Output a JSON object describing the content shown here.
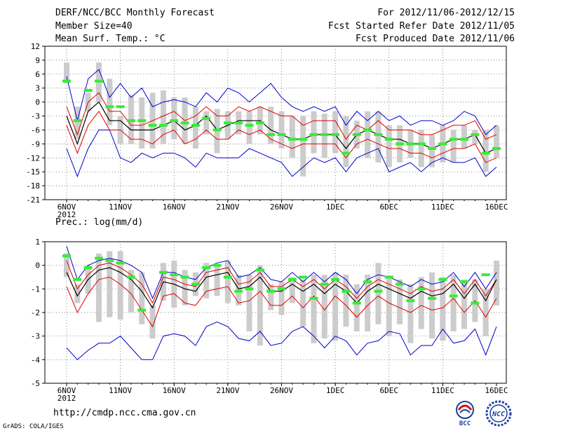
{
  "header": {
    "title": "DERF/NCC/BCC Monthly Forecast",
    "member_size": "Member Size=40",
    "variable": "Mean Surf. Temp.: °C",
    "forecast_period": "For 2012/11/06-2012/12/15",
    "started_date": "Fcst Started Refer Date 2012/11/05",
    "produced_date": "Fcst Produced Date 2012/11/06"
  },
  "footer": {
    "url": "http://cmdp.ncc.cma.gov.cn",
    "grads": "GrADS: COLA/IGES",
    "logo_bcc": "BCC",
    "logo_ncc": "NCC"
  },
  "colors": {
    "envelope": "#0000cc",
    "spread": "#dd0000",
    "mean": "#000000",
    "box": "#cccccc",
    "observed": "#33ee33"
  },
  "chart_data": [
    {
      "type": "line",
      "title": "Mean Surf. Temp.: °C",
      "ylim": [
        -21,
        12
      ],
      "yticks": [
        12,
        9,
        6,
        3,
        0,
        -3,
        -6,
        -9,
        -12,
        -15,
        -18,
        -21
      ],
      "xlim": [
        0,
        40
      ],
      "xticks": [
        {
          "x": 0,
          "label": "6NOV"
        },
        {
          "x": 5,
          "label": "11NOV"
        },
        {
          "x": 10,
          "label": "16NOV"
        },
        {
          "x": 15,
          "label": "21NOV"
        },
        {
          "x": 20,
          "label": "26NOV"
        },
        {
          "x": 25,
          "label": "1DEC"
        },
        {
          "x": 30,
          "label": "6DEC"
        },
        {
          "x": 35,
          "label": "11DEC"
        },
        {
          "x": 40,
          "label": "16DEC"
        }
      ],
      "year_label": "2012",
      "series": [
        {
          "name": "max",
          "color": "#0000cc",
          "values": [
            5.5,
            -4,
            5,
            7,
            1,
            4,
            1,
            3,
            -1,
            0,
            0.5,
            0,
            -1,
            2,
            0,
            3,
            2,
            0,
            2,
            4,
            1,
            -1,
            -2,
            -1,
            -2,
            -1,
            -5,
            -2,
            -4,
            -2,
            -4,
            -3,
            -5,
            -4,
            -4,
            -5,
            -4,
            -2,
            -3,
            -7,
            -5
          ]
        },
        {
          "name": "upper",
          "color": "#dd0000",
          "values": [
            -1,
            -7,
            0,
            2,
            -2,
            -2,
            -5,
            -5,
            -4,
            -3,
            -2,
            -4,
            -3,
            -1,
            -3,
            -3,
            -1,
            -2,
            -1,
            -2,
            -3,
            -3,
            -5,
            -4,
            -4,
            -4,
            -8,
            -5,
            -6,
            -4,
            -6,
            -6,
            -6,
            -7,
            -7,
            -6,
            -5,
            -5,
            -4,
            -8,
            -7
          ]
        },
        {
          "name": "mean",
          "color": "#000000",
          "values": [
            -3,
            -9,
            -2,
            0,
            -4,
            -4,
            -6,
            -6,
            -6,
            -5,
            -4,
            -6,
            -5,
            -3,
            -6,
            -5,
            -4,
            -4,
            -4,
            -6,
            -7,
            -8,
            -8,
            -7,
            -7,
            -7,
            -10,
            -7,
            -6,
            -7,
            -8,
            -8,
            -9,
            -9,
            -10,
            -9,
            -8,
            -8,
            -7,
            -11,
            -10
          ]
        },
        {
          "name": "lower",
          "color": "#dd0000",
          "values": [
            -5,
            -11,
            -5,
            -2,
            -6,
            -6,
            -8,
            -8,
            -9,
            -7,
            -6,
            -9,
            -8,
            -6,
            -8,
            -8,
            -6,
            -7,
            -6,
            -8,
            -9,
            -10,
            -9,
            -9,
            -9,
            -9,
            -12,
            -9,
            -8,
            -9,
            -10,
            -10,
            -11,
            -11,
            -12,
            -11,
            -10,
            -10,
            -9,
            -13,
            -12
          ]
        },
        {
          "name": "min",
          "color": "#0000cc",
          "values": [
            -10,
            -16,
            -10,
            -6,
            -6,
            -12,
            -13,
            -11,
            -12,
            -11,
            -11,
            -12,
            -14,
            -11,
            -12,
            -12,
            -12,
            -10,
            -11,
            -12,
            -13,
            -16,
            -14,
            -12,
            -13,
            -12,
            -15,
            -12,
            -11,
            -10,
            -15,
            -14,
            -13,
            -15,
            -13,
            -12,
            -13,
            -13,
            -12,
            -16,
            -14
          ]
        },
        {
          "name": "box_top",
          "color": "#cccccc",
          "values": [
            8.5,
            -1,
            2,
            8.5,
            5,
            -3,
            1.5,
            1,
            2,
            2.5,
            1,
            1,
            -1,
            -2,
            -1.5,
            -2,
            -2,
            -2,
            -1,
            -1,
            -2,
            -3,
            -3,
            -2,
            -2.5,
            -2,
            -3,
            -4,
            -2,
            -2,
            -5,
            -5,
            -6,
            -6,
            -7,
            -5,
            -6,
            -5,
            -6,
            -6,
            -5
          ]
        },
        {
          "name": "box_bottom",
          "color": "#cccccc",
          "values": [
            4,
            -8,
            -2,
            0,
            -5,
            -9,
            -9,
            -10,
            -10,
            -9,
            -8,
            -9,
            -10,
            -7,
            -11,
            -8,
            -7,
            -9,
            -7,
            -9,
            -10,
            -12,
            -16,
            -11,
            -12,
            -11,
            -14,
            -10,
            -12,
            -13,
            -14,
            -13,
            -12,
            -14,
            -14,
            -13,
            -13,
            -10,
            -9,
            -15,
            -12
          ]
        },
        {
          "name": "observed",
          "color": "#33ee33",
          "values": [
            4.5,
            -4,
            2.5,
            4.5,
            -1,
            -1,
            -4,
            -4,
            -5,
            -5,
            -4,
            -4.5,
            -5,
            -3.5,
            -6,
            -4.5,
            -4.5,
            -5,
            -4.5,
            -7,
            -7,
            -8,
            -8,
            -7,
            -7,
            -7,
            -11,
            -7,
            -6,
            -7,
            -8,
            -9,
            -9,
            -9,
            -10,
            -9,
            -8,
            -8,
            -7,
            -11,
            -10
          ]
        }
      ]
    },
    {
      "type": "line",
      "title": "Prec.: log(mm/d)",
      "ylim": [
        -5,
        1
      ],
      "yticks": [
        1,
        0,
        -1,
        -2,
        -3,
        -4,
        -5
      ],
      "xlim": [
        0,
        40
      ],
      "xticks": [
        {
          "x": 0,
          "label": "6NOV"
        },
        {
          "x": 5,
          "label": "11NOV"
        },
        {
          "x": 10,
          "label": "16NOV"
        },
        {
          "x": 15,
          "label": "21NOV"
        },
        {
          "x": 20,
          "label": "26NOV"
        },
        {
          "x": 25,
          "label": "1DEC"
        },
        {
          "x": 30,
          "label": "6DEC"
        },
        {
          "x": 35,
          "label": "11DEC"
        },
        {
          "x": 40,
          "label": "16DEC"
        }
      ],
      "year_label": "2012",
      "series": [
        {
          "name": "max",
          "color": "#0000cc",
          "values": [
            0.8,
            -0.6,
            0,
            0.2,
            0.3,
            0.2,
            0,
            -0.3,
            -1.4,
            -0.3,
            -0.3,
            -0.5,
            -0.6,
            -0.1,
            0.1,
            0.2,
            -0.5,
            -0.4,
            -0.1,
            -0.6,
            -0.7,
            -0.3,
            -0.7,
            -0.3,
            -0.7,
            -0.3,
            -0.6,
            -1.2,
            -0.6,
            -0.4,
            -0.5,
            -0.7,
            -0.9,
            -0.6,
            -0.8,
            -0.7,
            -0.3,
            -0.9,
            -0.3,
            -1.0,
            -0.3
          ]
        },
        {
          "name": "upper",
          "color": "#dd0000",
          "values": [
            0.2,
            -1.0,
            -0.4,
            0,
            0.1,
            -0.1,
            -0.4,
            -0.8,
            -1.6,
            -0.5,
            -0.6,
            -0.8,
            -0.9,
            -0.3,
            -0.2,
            -0.1,
            -0.8,
            -0.7,
            -0.3,
            -0.9,
            -0.9,
            -0.6,
            -0.9,
            -0.6,
            -1.0,
            -0.6,
            -0.9,
            -1.4,
            -0.9,
            -0.6,
            -0.8,
            -1.0,
            -1.2,
            -0.9,
            -1.1,
            -1.0,
            -0.6,
            -1.2,
            -0.6,
            -1.3,
            -0.6
          ]
        },
        {
          "name": "mean",
          "color": "#000000",
          "values": [
            -0.3,
            -1.3,
            -0.6,
            -0.2,
            -0.1,
            -0.3,
            -0.6,
            -1.1,
            -1.8,
            -0.7,
            -0.8,
            -1.0,
            -1.1,
            -0.5,
            -0.4,
            -0.3,
            -1.0,
            -0.9,
            -0.5,
            -1.1,
            -1.1,
            -0.8,
            -1.1,
            -0.8,
            -1.2,
            -0.8,
            -1.1,
            -1.6,
            -1.1,
            -0.8,
            -1.0,
            -1.2,
            -1.4,
            -1.1,
            -1.3,
            -1.2,
            -0.8,
            -1.4,
            -0.8,
            -1.5,
            -0.6
          ]
        },
        {
          "name": "lower",
          "color": "#dd0000",
          "values": [
            -0.9,
            -2.0,
            -1.2,
            -0.6,
            -0.5,
            -0.8,
            -1.2,
            -1.9,
            -2.6,
            -1.3,
            -1.2,
            -1.6,
            -1.7,
            -1.1,
            -1.0,
            -0.9,
            -1.6,
            -1.5,
            -1.1,
            -1.7,
            -1.7,
            -1.3,
            -1.8,
            -1.3,
            -1.9,
            -1.3,
            -1.7,
            -2.2,
            -1.7,
            -1.3,
            -1.6,
            -1.8,
            -2.0,
            -1.7,
            -1.9,
            -1.8,
            -1.4,
            -2.0,
            -1.5,
            -2.2,
            -1.4
          ]
        },
        {
          "name": "min",
          "color": "#0000cc",
          "values": [
            -3.5,
            -4.0,
            -3.6,
            -3.3,
            -3.3,
            -3.0,
            -3.5,
            -4.0,
            -4.0,
            -3.0,
            -2.9,
            -3.0,
            -3.4,
            -2.6,
            -2.4,
            -2.6,
            -3.1,
            -3.2,
            -2.8,
            -3.4,
            -3.3,
            -2.8,
            -2.6,
            -3.0,
            -3.5,
            -3.0,
            -3.2,
            -3.8,
            -3.3,
            -3.2,
            -2.8,
            -2.9,
            -3.8,
            -3.4,
            -3.4,
            -2.7,
            -3.3,
            -3.2,
            -2.7,
            -3.8,
            -2.6
          ]
        },
        {
          "name": "box_top",
          "color": "#cccccc",
          "values": [
            0.5,
            -0.8,
            0,
            0.5,
            0.6,
            0.6,
            -0.2,
            -0.3,
            -1.7,
            0.1,
            0.2,
            -0.2,
            -0.3,
            0.1,
            0,
            0.2,
            -0.4,
            -0.4,
            0,
            -0.8,
            -0.7,
            -0.5,
            -0.6,
            -0.4,
            -0.4,
            -0.3,
            -0.4,
            -0.8,
            -0.4,
            0.1,
            -0.5,
            -0.6,
            -0.8,
            -0.5,
            -0.3,
            -0.5,
            -0.4,
            -0.6,
            -0.6,
            -1.0,
            0.2
          ]
        },
        {
          "name": "box_bottom",
          "color": "#cccccc",
          "values": [
            -0.5,
            -1.6,
            -1.2,
            -2.4,
            -2.2,
            -2.3,
            -2.0,
            -2.5,
            -3.1,
            -1.5,
            -1.8,
            -1.7,
            -1.3,
            -1.4,
            -1.3,
            -1.6,
            -1.7,
            -2.8,
            -3.4,
            -1.9,
            -2.1,
            -1.6,
            -2.6,
            -3.3,
            -3.1,
            -3.2,
            -2.6,
            -2.8,
            -2.8,
            -2.5,
            -3.0,
            -2.5,
            -3.3,
            -2.7,
            -3.1,
            -3.2,
            -2.8,
            -2.7,
            -2.4,
            -3.0,
            -1.7
          ]
        },
        {
          "name": "observed",
          "color": "#33ee33",
          "values": [
            0.4,
            -0.6,
            -0.1,
            0.3,
            0.2,
            0.1,
            -0.5,
            -1.9,
            null,
            -0.3,
            -0.4,
            -0.5,
            -0.8,
            -0.1,
            0,
            -0.5,
            -1.1,
            -1.0,
            -0.2,
            -1.1,
            -1.0,
            -0.6,
            -0.5,
            -1.4,
            -0.8,
            -0.6,
            -1.1,
            -1.6,
            -0.7,
            -1.1,
            -0.5,
            -0.8,
            -1.5,
            -1.0,
            -1.4,
            -0.6,
            -1.3,
            -0.7,
            -1.6,
            -0.4,
            null
          ]
        }
      ]
    }
  ]
}
